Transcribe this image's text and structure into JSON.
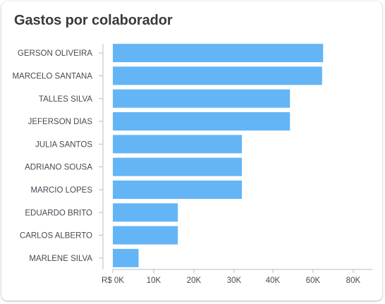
{
  "card": {
    "title": "Gastos por colaborador"
  },
  "chart_data": {
    "type": "bar",
    "orientation": "horizontal",
    "title": "Gastos por colaborador",
    "xlabel": "",
    "ylabel": "",
    "categories": [
      "GERSON OLIVEIRA",
      "MARCELO SANTANA",
      "TALLES SILVA",
      "JEFERSON DIAS",
      "JULIA SANTOS",
      "ADRIANO SOUSA",
      "MARCIO LOPES",
      "EDUARDO BRITO",
      "CARLOS ALBERTO",
      "MARLENE SILVA"
    ],
    "values": [
      65000,
      64500,
      48500,
      48500,
      32000,
      32000,
      32000,
      16000,
      16000,
      6300
    ],
    "xlim": [
      0,
      85000
    ],
    "x_ticks": [
      0,
      10000,
      20000,
      30000,
      40000,
      60000,
      80000
    ],
    "x_tick_labels": [
      "R$ 0K",
      "10K",
      "20K",
      "30K",
      "40K",
      "60K",
      "80K"
    ],
    "bar_color": "#64b5f6",
    "grid": false,
    "legend": "none"
  }
}
